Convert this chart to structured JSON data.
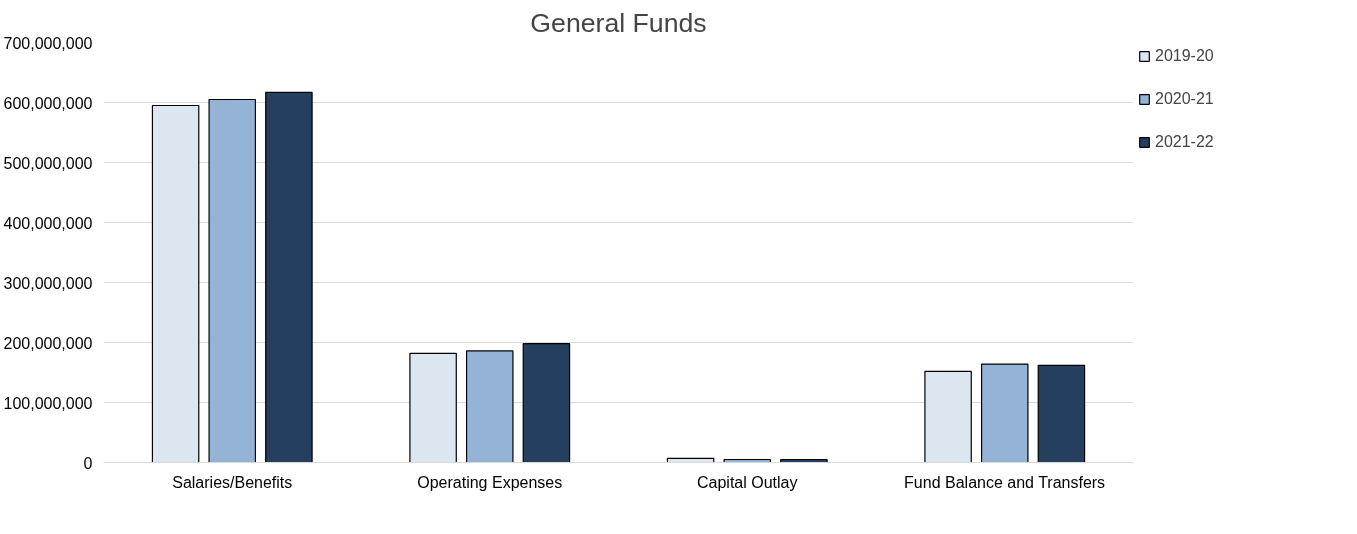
{
  "chart_data": {
    "type": "bar",
    "title": "General Funds",
    "categories": [
      "Salaries/Benefits",
      "Operating Expenses",
      "Capital Outlay",
      "Fund Balance and Transfers"
    ],
    "series": [
      {
        "name": "2019-20",
        "color": "#dce6f1",
        "values": [
          595000000,
          182000000,
          7000000,
          152000000
        ]
      },
      {
        "name": "2020-21",
        "color": "#95b3d7",
        "values": [
          605000000,
          186000000,
          5000000,
          164000000
        ]
      },
      {
        "name": "2021-22",
        "color": "#253f5e",
        "values": [
          617000000,
          198000000,
          5000000,
          162000000
        ]
      }
    ],
    "ylim": [
      0,
      700000000
    ],
    "yticks": [
      {
        "value": 0,
        "label": "0"
      },
      {
        "value": 100000000,
        "label": "100,000,000"
      },
      {
        "value": 200000000,
        "label": "200,000,000"
      },
      {
        "value": 300000000,
        "label": "300,000,000"
      },
      {
        "value": 400000000,
        "label": "400,000,000"
      },
      {
        "value": 500000000,
        "label": "500,000,000"
      },
      {
        "value": 600000000,
        "label": "600,000,000"
      },
      {
        "value": 700000000,
        "label": "700,000,000"
      }
    ],
    "grid": "y",
    "legend": "right"
  }
}
